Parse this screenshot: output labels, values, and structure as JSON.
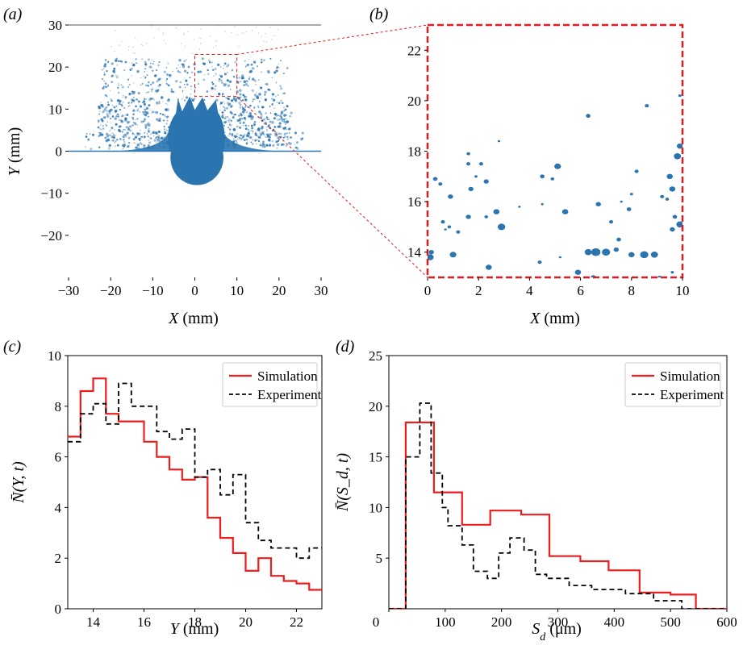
{
  "panels": {
    "a": {
      "label": "(a)"
    },
    "b": {
      "label": "(b)"
    },
    "c": {
      "label": "(c)"
    },
    "d": {
      "label": "(d)"
    }
  },
  "colors": {
    "droplet": "#2a74b0",
    "simulation": "#ee1c1c",
    "experiment": "#000000",
    "zoom_box": "#e41a1c"
  },
  "chart_data": [
    {
      "panel": "a",
      "type": "scatter",
      "description_source": "droplet field snapshot",
      "xlabel_var": "X",
      "xlabel_unit": " (mm)",
      "ylabel_var": "Y",
      "ylabel_unit": " (mm)",
      "xlim": [
        -30,
        30
      ],
      "ylim": [
        -30,
        30
      ],
      "xticks": [
        -30,
        -20,
        -10,
        0,
        10,
        20,
        30
      ],
      "yticks": [
        -20,
        -10,
        0,
        10,
        20,
        30
      ],
      "xtick_labels": [
        "−30",
        "−20",
        "−10",
        "0",
        "10",
        "20",
        "30"
      ],
      "ytick_labels": [
        "−20",
        "−10",
        "0",
        "10",
        "20",
        "30"
      ],
      "zoom_region": {
        "x": [
          0,
          10
        ],
        "y": [
          13,
          23
        ]
      }
    },
    {
      "panel": "b",
      "type": "scatter",
      "xlabel_var": "X",
      "xlabel_unit": " (mm)",
      "xlim": [
        0,
        10
      ],
      "ylim": [
        13,
        23
      ],
      "xticks": [
        0,
        2,
        4,
        6,
        8,
        10
      ],
      "yticks": [
        14,
        16,
        18,
        20,
        22
      ],
      "droplets": [
        [
          0.1,
          13.8,
          0.14
        ],
        [
          0.15,
          14.0,
          0.1
        ],
        [
          0.3,
          16.9,
          0.09
        ],
        [
          0.5,
          16.7,
          0.08
        ],
        [
          0.9,
          16.2,
          0.1
        ],
        [
          0.6,
          15.2,
          0.08
        ],
        [
          0.85,
          15.0,
          0.07
        ],
        [
          0.7,
          14.9,
          0.05
        ],
        [
          1.2,
          14.8,
          0.08
        ],
        [
          1.0,
          13.9,
          0.13
        ],
        [
          1.6,
          17.9,
          0.07
        ],
        [
          1.6,
          17.5,
          0.08
        ],
        [
          1.9,
          17.0,
          0.06
        ],
        [
          2.1,
          17.5,
          0.08
        ],
        [
          1.7,
          16.5,
          0.1
        ],
        [
          2.3,
          16.8,
          0.1
        ],
        [
          1.6,
          15.4,
          0.1
        ],
        [
          2.7,
          15.6,
          0.12
        ],
        [
          2.9,
          15.0,
          0.15
        ],
        [
          2.3,
          15.4,
          0.07
        ],
        [
          2.4,
          13.4,
          0.12
        ],
        [
          2.8,
          18.4,
          0.05
        ],
        [
          4.4,
          13.6,
          0.08
        ],
        [
          4.5,
          17.0,
          0.09
        ],
        [
          4.9,
          16.9,
          0.07
        ],
        [
          5.1,
          17.4,
          0.13
        ],
        [
          4.5,
          15.9,
          0.05
        ],
        [
          5.4,
          15.6,
          0.12
        ],
        [
          5.9,
          13.2,
          0.12
        ],
        [
          6.3,
          14.0,
          0.14
        ],
        [
          6.6,
          14.0,
          0.18
        ],
        [
          7.0,
          14.0,
          0.16
        ],
        [
          7.4,
          14.1,
          0.1
        ],
        [
          7.5,
          14.5,
          0.09
        ],
        [
          6.7,
          15.9,
          0.1
        ],
        [
          7.2,
          15.2,
          0.08
        ],
        [
          7.9,
          15.7,
          0.09
        ],
        [
          8.0,
          13.9,
          0.12
        ],
        [
          8.2,
          17.2,
          0.08
        ],
        [
          8.5,
          13.9,
          0.16
        ],
        [
          8.9,
          13.9,
          0.14
        ],
        [
          8.6,
          19.8,
          0.08
        ],
        [
          6.3,
          19.4,
          0.09
        ],
        [
          9.2,
          16.2,
          0.08
        ],
        [
          9.6,
          16.5,
          0.12
        ],
        [
          9.5,
          17.0,
          0.12
        ],
        [
          9.8,
          17.8,
          0.14
        ],
        [
          9.9,
          18.2,
          0.12
        ],
        [
          9.7,
          15.4,
          0.09
        ],
        [
          9.9,
          15.1,
          0.14
        ],
        [
          9.6,
          14.9,
          0.1
        ],
        [
          9.4,
          16.1,
          0.07
        ],
        [
          9.1,
          13.0,
          0.08
        ],
        [
          9.6,
          13.2,
          0.06
        ],
        [
          9.9,
          20.2,
          0.06
        ],
        [
          6.5,
          13.0,
          0.1
        ],
        [
          5.2,
          13.8,
          0.05
        ],
        [
          3.6,
          15.8,
          0.05
        ],
        [
          8.0,
          16.3,
          0.06
        ],
        [
          7.6,
          16.0,
          0.05
        ]
      ]
    },
    {
      "panel": "c",
      "type": "line",
      "step": true,
      "xlabel_var": "Y",
      "xlabel_unit": " (mm)",
      "ylabel": "N̄(Y, t)",
      "xlim": [
        13,
        23
      ],
      "ylim": [
        0,
        10
      ],
      "xticks": [
        14,
        16,
        18,
        20,
        22
      ],
      "yticks": [
        0,
        2,
        4,
        6,
        8,
        10
      ],
      "legend": "top-right",
      "series": [
        {
          "name": "Simulation",
          "style": "solid",
          "edges": [
            13,
            13.5,
            14,
            14.5,
            15,
            16,
            16.5,
            17,
            17.5,
            18,
            18.5,
            19,
            19.5,
            20,
            20.5,
            21,
            21.5,
            22,
            22.5,
            23
          ],
          "values": [
            6.8,
            8.6,
            9.1,
            7.7,
            7.4,
            6.6,
            6.0,
            5.5,
            5.1,
            5.2,
            3.6,
            2.8,
            2.2,
            1.5,
            2.0,
            1.3,
            1.1,
            1.0,
            0.75
          ]
        },
        {
          "name": "Experiment",
          "style": "dashed",
          "edges": [
            13,
            13.5,
            14,
            14.5,
            15,
            15.5,
            16.5,
            17,
            17.5,
            18,
            18.5,
            19,
            19.5,
            20,
            20.5,
            21,
            22,
            22.5,
            23
          ],
          "values": [
            6.6,
            7.7,
            8.1,
            7.3,
            8.9,
            8.0,
            7.0,
            6.7,
            7.1,
            5.2,
            5.5,
            4.5,
            5.3,
            3.4,
            2.7,
            2.4,
            2.0,
            2.4
          ]
        }
      ]
    },
    {
      "panel": "d",
      "type": "line",
      "step": true,
      "xlabel_var": "S",
      "xlabel_sub": "d",
      "xlabel_unit": " (μm)",
      "ylabel": "N̄(S_d, t)",
      "xlim": [
        0,
        600
      ],
      "ylim": [
        0,
        25
      ],
      "xticks": [
        0,
        100,
        200,
        300,
        400,
        500,
        600
      ],
      "yticks": [
        5,
        10,
        15,
        20,
        25
      ],
      "legend": "top-right",
      "series": [
        {
          "name": "Simulation",
          "style": "solid",
          "edges": [
            0,
            30,
            80,
            130,
            180,
            235,
            285,
            340,
            390,
            445,
            500,
            545,
            600
          ],
          "values": [
            0,
            18.4,
            11.5,
            8.3,
            9.7,
            9.3,
            5.2,
            4.7,
            3.8,
            1.6,
            1.4,
            0
          ]
        },
        {
          "name": "Experiment",
          "style": "dashed",
          "edges": [
            0,
            30,
            55,
            75,
            95,
            105,
            130,
            150,
            175,
            195,
            215,
            240,
            260,
            280,
            320,
            360,
            420,
            470,
            520,
            600
          ],
          "values": [
            0,
            15.0,
            20.3,
            13.4,
            10.0,
            8.2,
            6.3,
            3.7,
            3.0,
            5.5,
            7.0,
            5.8,
            3.4,
            3.0,
            2.3,
            1.9,
            1.5,
            0.8,
            0
          ]
        }
      ]
    }
  ]
}
